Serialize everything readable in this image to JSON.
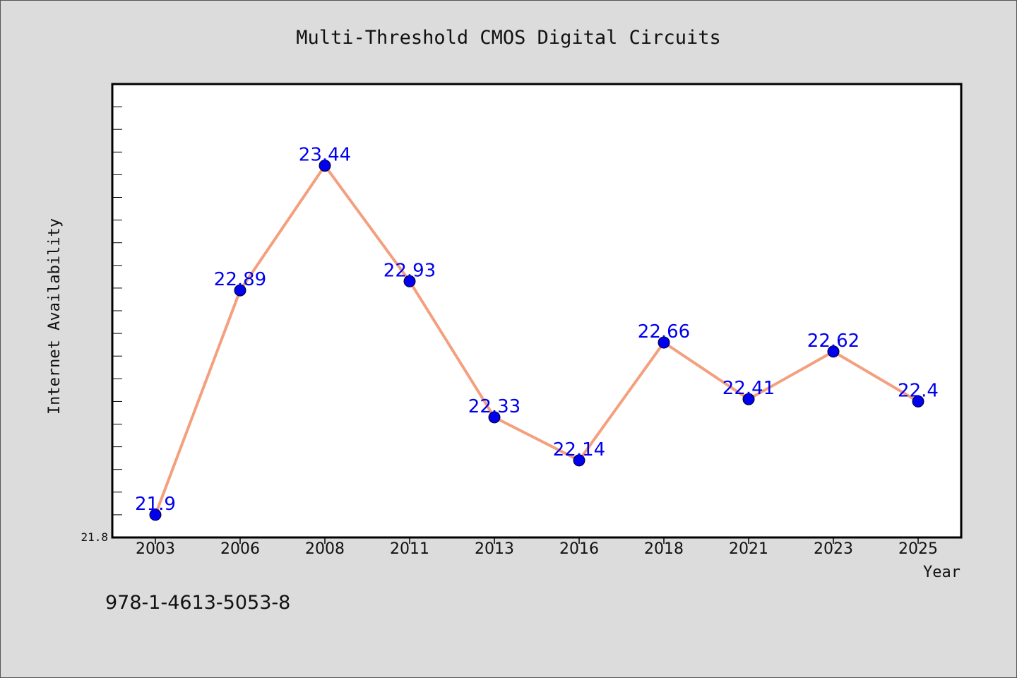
{
  "footer": "978-1-4613-5053-8",
  "colors": {
    "background": "#dcdcdc",
    "plot_background": "#ffffff",
    "line": "#f4a07e",
    "marker": "#0000ee",
    "data_label": "#0000ee"
  },
  "chart_data": {
    "type": "line",
    "title": "Multi-Threshold CMOS Digital Circuits",
    "xlabel": "Year",
    "ylabel": "Internet Availability",
    "categories": [
      "2003",
      "2006",
      "2008",
      "2011",
      "2013",
      "2016",
      "2018",
      "2021",
      "2023",
      "2025"
    ],
    "series": [
      {
        "values": [
          21.9,
          22.89,
          23.44,
          22.93,
          22.33,
          22.14,
          22.66,
          22.41,
          22.62,
          22.4
        ]
      }
    ],
    "ylim": [
      21.8,
      23.8
    ],
    "ytick_labels_shown": [
      "21.8"
    ],
    "data_labels": true,
    "grid": false,
    "legend": "none"
  }
}
